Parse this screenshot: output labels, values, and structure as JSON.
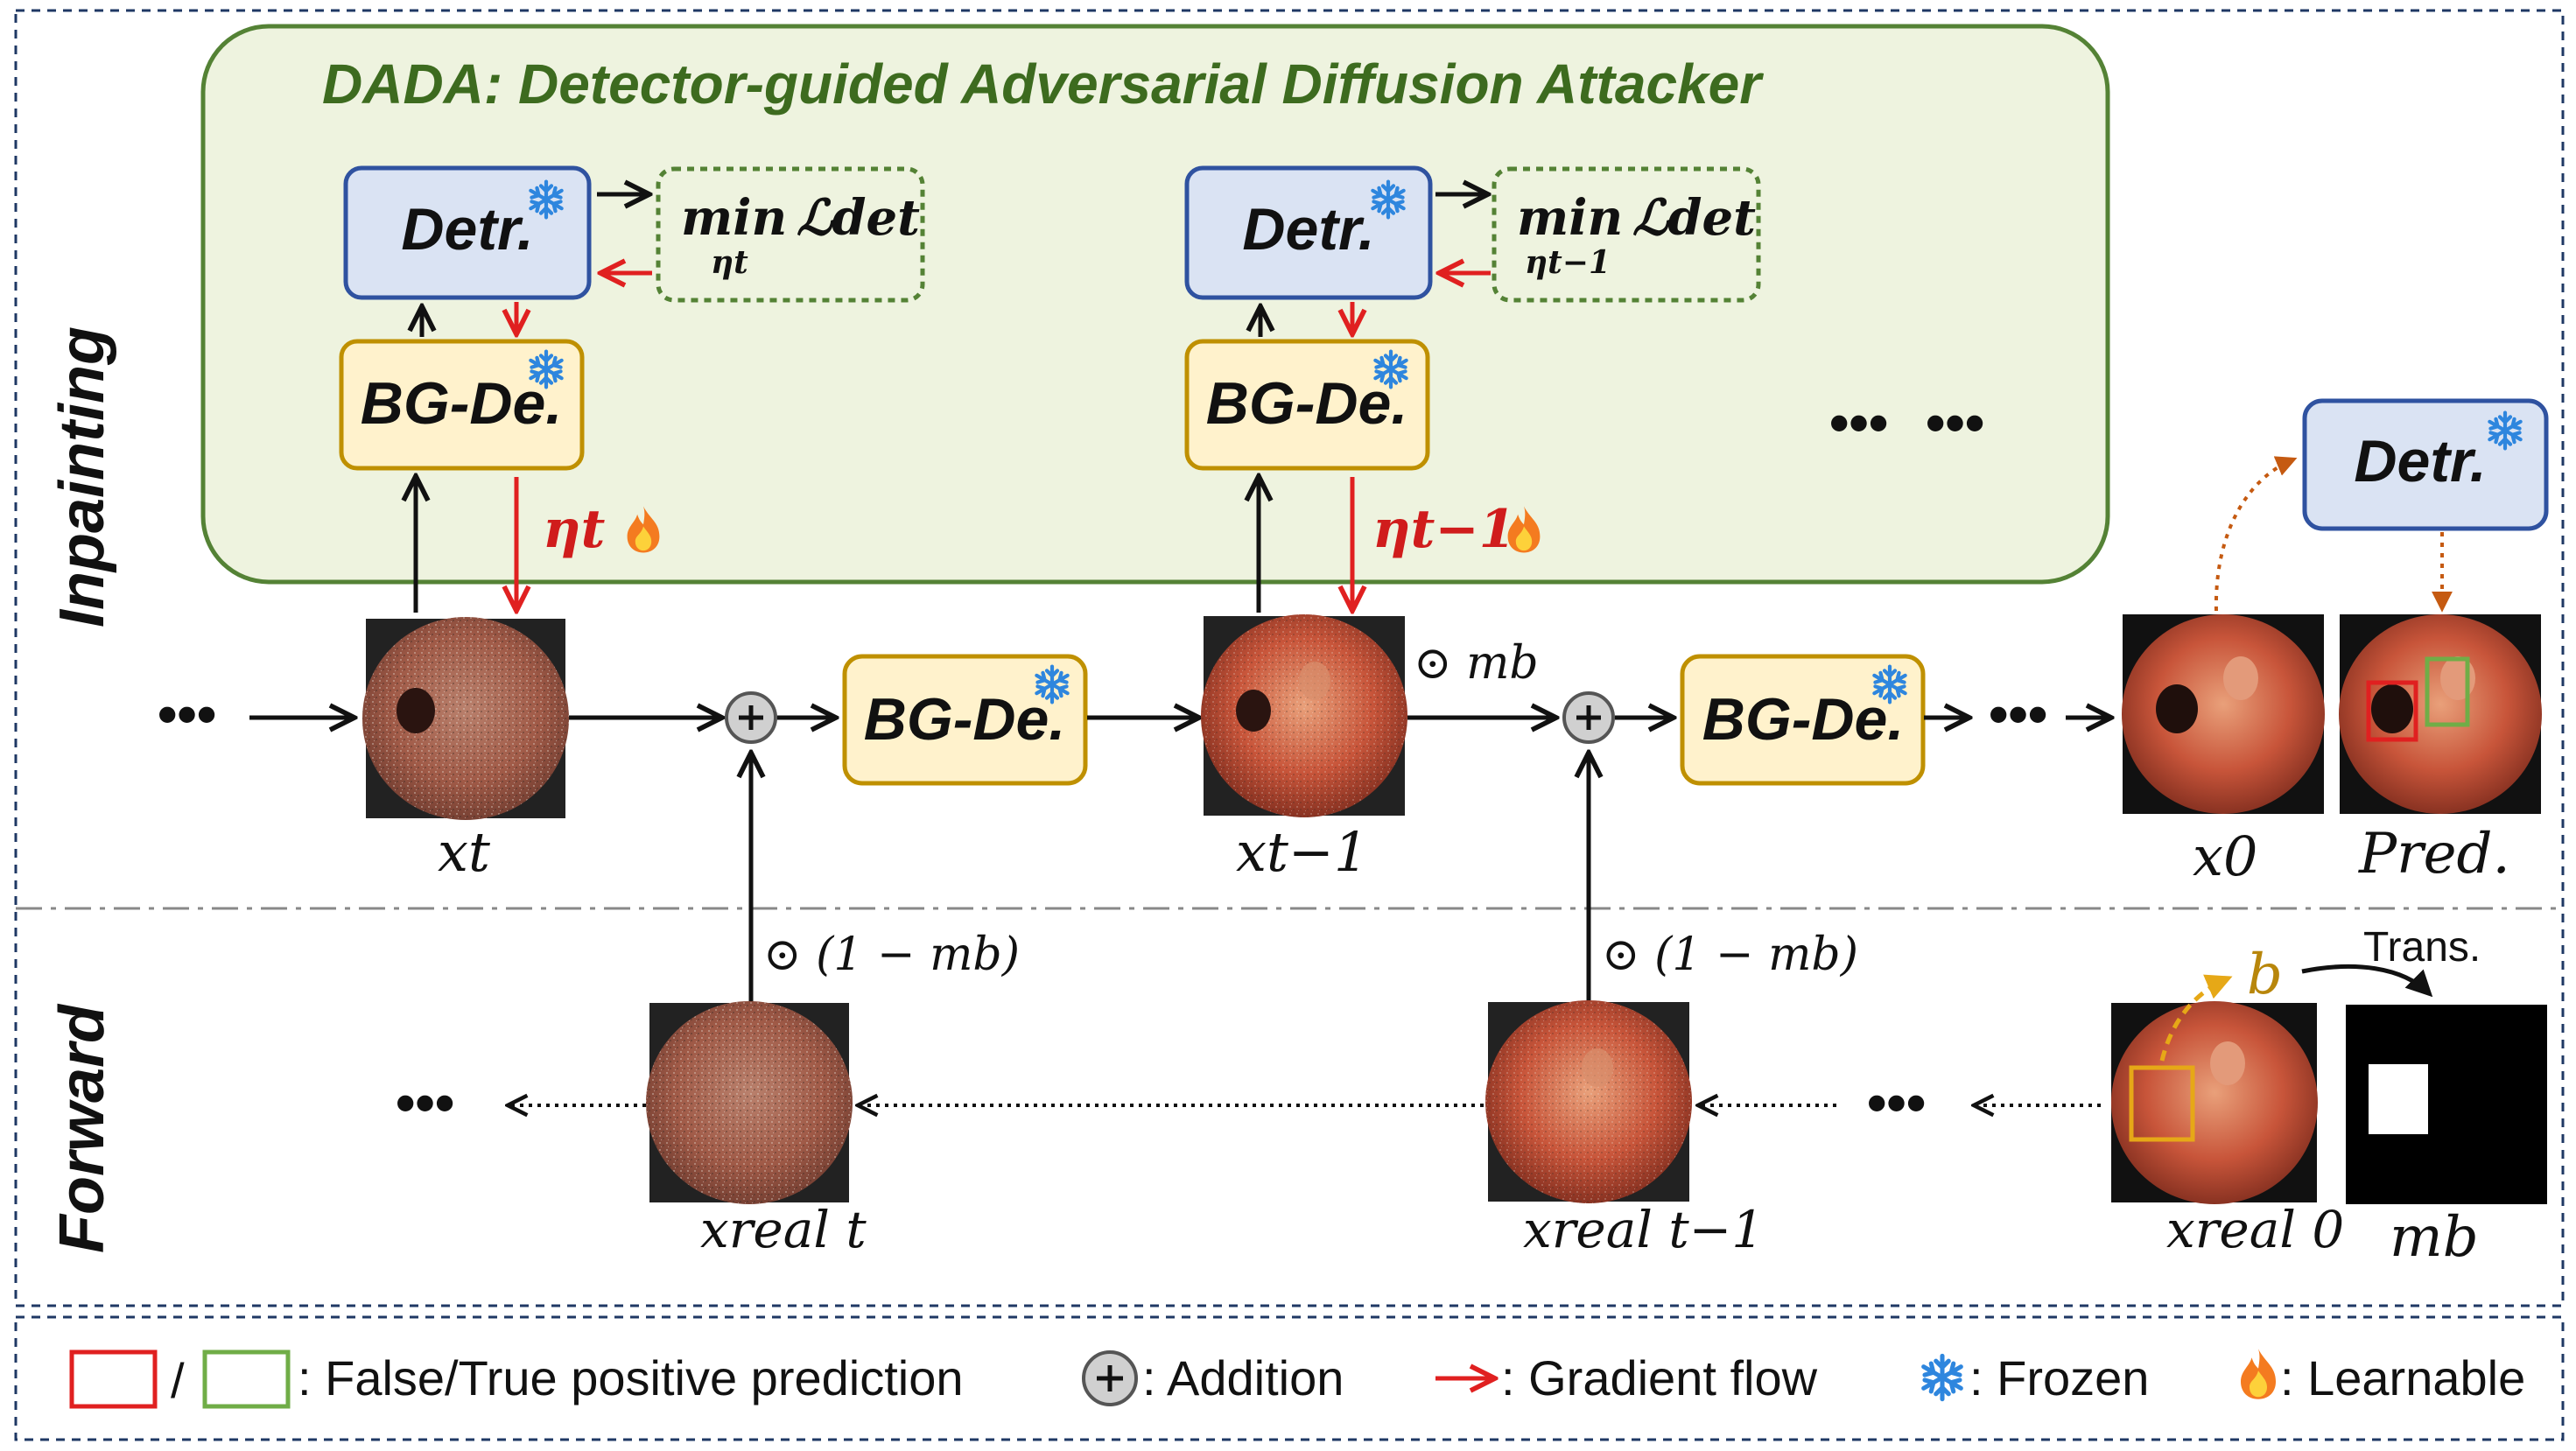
{
  "title": "DADA: Detector-guided Adversarial Diffusion Attacker",
  "sections": {
    "inpainting": "Inpainting",
    "forward": "Forward"
  },
  "modules": {
    "detector": "Detr.",
    "bg_decoder": "BG-De."
  },
  "losses": {
    "loss1": {
      "min": "min",
      "sub": "ηt",
      "fn": "ℒdet"
    },
    "loss2": {
      "min": "min",
      "sub": "ηt−1",
      "fn": "ℒdet"
    }
  },
  "params": {
    "eta_t": "ηt",
    "eta_t1": "ηt−1"
  },
  "images": {
    "x_t": "xt",
    "x_t1": "xt−1",
    "x_0": "x0",
    "pred": "Pred.",
    "x_t_real": "xreal t",
    "x_t1_real": "xreal t−1",
    "x_0_real": "xreal 0",
    "m_b": "mb"
  },
  "ops": {
    "mask_mb": "⊙ mb",
    "mask_inv1": "⊙ (1 − mb)",
    "mask_inv2": "⊙ (1 − mb)",
    "b_label": "b",
    "trans": "Trans."
  },
  "ellipsis": "•••",
  "legend": {
    "slash": "/",
    "boxes": ": False/True positive prediction",
    "addition": ": Addition",
    "gradient": ": Gradient flow",
    "frozen": ": Frozen",
    "learnable": ": Learnable"
  },
  "colors": {
    "green_panel_fill": "#eef3df",
    "green_panel_stroke": "#548235",
    "detr_fill": "#dae3f3",
    "detr_stroke": "#2f52a0",
    "bgde_fill": "#fff2cc",
    "bgde_stroke": "#bf9000",
    "gradient_red": "#e02020",
    "false_positive": "#e02020",
    "true_positive": "#70ad47",
    "bbox_orange": "#e6a817",
    "title_green": "#3d6b1f"
  }
}
